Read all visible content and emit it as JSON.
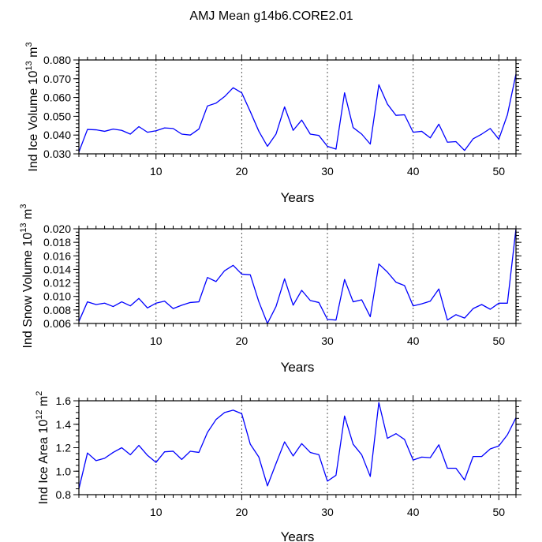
{
  "title": "AMJ Mean g14b6.CORE2.01",
  "chart_data": [
    {
      "type": "line",
      "xlabel": "Years",
      "ylabel_pre": "Ind Ice Volume 10",
      "ylabel_exp": "13",
      "ylabel_unit": " m",
      "ylabel_unit_exp": "3",
      "xlim": [
        1,
        52
      ],
      "ylim": [
        0.03,
        0.08
      ],
      "x_ticks": [
        10,
        20,
        30,
        40,
        50
      ],
      "y_ticks": [
        "0.030",
        "0.040",
        "0.050",
        "0.060",
        "0.070",
        "0.080"
      ],
      "y_tick_values": [
        0.03,
        0.04,
        0.05,
        0.06,
        0.07,
        0.08
      ],
      "y_minor_step": 0.002,
      "vlines": [
        10,
        20,
        30,
        40,
        50
      ],
      "series_color": "#0000ff",
      "x": [
        1,
        2,
        3,
        4,
        5,
        6,
        7,
        8,
        9,
        10,
        11,
        12,
        13,
        14,
        15,
        16,
        17,
        18,
        19,
        20,
        21,
        22,
        23,
        24,
        25,
        26,
        27,
        28,
        29,
        30,
        31,
        32,
        33,
        34,
        35,
        36,
        37,
        38,
        39,
        40,
        41,
        42,
        43,
        44,
        45,
        46,
        47,
        48,
        49,
        50,
        51,
        52
      ],
      "values": [
        0.031,
        0.043,
        0.0428,
        0.042,
        0.0432,
        0.0425,
        0.0405,
        0.0445,
        0.0415,
        0.0423,
        0.0438,
        0.0435,
        0.0405,
        0.04,
        0.0432,
        0.0555,
        0.057,
        0.0605,
        0.0652,
        0.0625,
        0.0525,
        0.042,
        0.034,
        0.0405,
        0.055,
        0.0425,
        0.048,
        0.0405,
        0.0398,
        0.034,
        0.0325,
        0.0625,
        0.044,
        0.0405,
        0.0352,
        0.0668,
        0.0565,
        0.0505,
        0.0508,
        0.0415,
        0.042,
        0.0385,
        0.0458,
        0.0362,
        0.0365,
        0.0318,
        0.038,
        0.0405,
        0.0435,
        0.0378,
        0.0508,
        0.0725
      ]
    },
    {
      "type": "line",
      "xlabel": "Years",
      "ylabel_pre": "Ind Snow Volume 10",
      "ylabel_exp": "13",
      "ylabel_unit": " m",
      "ylabel_unit_exp": "3",
      "xlim": [
        1,
        52
      ],
      "ylim": [
        0.006,
        0.02
      ],
      "x_ticks": [
        10,
        20,
        30,
        40,
        50
      ],
      "y_ticks": [
        "0.006",
        "0.008",
        "0.010",
        "0.012",
        "0.014",
        "0.016",
        "0.018",
        "0.020"
      ],
      "y_tick_values": [
        0.006,
        0.008,
        0.01,
        0.012,
        0.014,
        0.016,
        0.018,
        0.02
      ],
      "y_minor_step": 0.0005,
      "vlines": [
        10,
        20,
        30,
        40,
        50
      ],
      "series_color": "#0000ff",
      "x": [
        1,
        2,
        3,
        4,
        5,
        6,
        7,
        8,
        9,
        10,
        11,
        12,
        13,
        14,
        15,
        16,
        17,
        18,
        19,
        20,
        21,
        22,
        23,
        24,
        25,
        26,
        27,
        28,
        29,
        30,
        31,
        32,
        33,
        34,
        35,
        36,
        37,
        38,
        39,
        40,
        41,
        42,
        43,
        44,
        45,
        46,
        47,
        48,
        49,
        50,
        51,
        52
      ],
      "values": [
        0.0063,
        0.0092,
        0.0088,
        0.009,
        0.0085,
        0.0092,
        0.0086,
        0.0097,
        0.0083,
        0.009,
        0.0093,
        0.0082,
        0.0087,
        0.0091,
        0.0092,
        0.0128,
        0.0122,
        0.0138,
        0.0146,
        0.0133,
        0.0132,
        0.0092,
        0.006,
        0.0085,
        0.0126,
        0.0087,
        0.0109,
        0.0094,
        0.0091,
        0.0066,
        0.0065,
        0.0125,
        0.0092,
        0.0095,
        0.007,
        0.0148,
        0.0136,
        0.0121,
        0.0116,
        0.0086,
        0.0089,
        0.0093,
        0.0111,
        0.0065,
        0.0073,
        0.0068,
        0.0082,
        0.0088,
        0.0081,
        0.009,
        0.009,
        0.02
      ]
    },
    {
      "type": "line",
      "xlabel": "Years",
      "ylabel_pre": "Ind Ice Area 10",
      "ylabel_exp": "12",
      "ylabel_unit": " m",
      "ylabel_unit_exp": "2",
      "xlim": [
        1,
        52
      ],
      "ylim": [
        0.8,
        1.6
      ],
      "x_ticks": [
        10,
        20,
        30,
        40,
        50
      ],
      "y_ticks": [
        "0.8",
        "1.0",
        "1.2",
        "1.4",
        "1.6"
      ],
      "y_tick_values": [
        0.8,
        1.0,
        1.2,
        1.4,
        1.6
      ],
      "y_minor_step": 0.05,
      "vlines": [
        10,
        20,
        30,
        40,
        50
      ],
      "series_color": "#0000ff",
      "x": [
        1,
        2,
        3,
        4,
        5,
        6,
        7,
        8,
        9,
        10,
        11,
        12,
        13,
        14,
        15,
        16,
        17,
        18,
        19,
        20,
        21,
        22,
        23,
        24,
        25,
        26,
        27,
        28,
        29,
        30,
        31,
        32,
        33,
        34,
        35,
        36,
        37,
        38,
        39,
        40,
        41,
        42,
        43,
        44,
        45,
        46,
        47,
        48,
        49,
        50,
        51,
        52
      ],
      "values": [
        0.85,
        1.155,
        1.09,
        1.11,
        1.16,
        1.2,
        1.14,
        1.22,
        1.135,
        1.075,
        1.165,
        1.17,
        1.1,
        1.17,
        1.16,
        1.33,
        1.44,
        1.5,
        1.52,
        1.49,
        1.23,
        1.12,
        0.875,
        1.065,
        1.25,
        1.13,
        1.235,
        1.16,
        1.14,
        0.915,
        0.965,
        1.47,
        1.23,
        1.14,
        0.955,
        1.585,
        1.28,
        1.32,
        1.27,
        1.095,
        1.12,
        1.115,
        1.225,
        1.025,
        1.025,
        0.925,
        1.125,
        1.125,
        1.19,
        1.215,
        1.31,
        1.455
      ]
    }
  ]
}
